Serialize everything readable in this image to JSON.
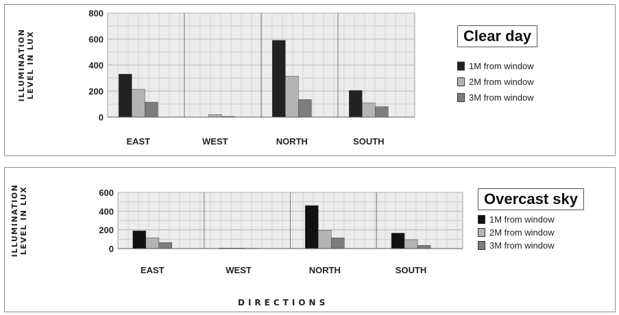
{
  "chart_data": [
    {
      "type": "bar",
      "title": "Clear day",
      "ylabel": "ILLUMINATION LEVEL IN LUX",
      "xlabel": "",
      "ylim": [
        0,
        800
      ],
      "yticks": [
        0,
        200,
        400,
        600,
        800
      ],
      "categories": [
        "EAST",
        "WEST",
        "NORTH",
        "SOUTH"
      ],
      "series": [
        {
          "name": "1M from window",
          "values": [
            330,
            0,
            590,
            205
          ],
          "color": "#222222"
        },
        {
          "name": "2M from window",
          "values": [
            215,
            20,
            315,
            110
          ],
          "color": "#b4b4b4"
        },
        {
          "name": "3M from window",
          "values": [
            115,
            5,
            135,
            80
          ],
          "color": "#7d7d7d"
        }
      ],
      "grid": true,
      "legend": "right"
    },
    {
      "type": "bar",
      "title": "Overcast sky",
      "ylabel": "ILLUMINATION LEVEL IN LUX",
      "xlabel": "DIRECTIONS",
      "ylim": [
        0,
        600
      ],
      "yticks": [
        0,
        200,
        400,
        600
      ],
      "categories": [
        "EAST",
        "WEST",
        "NORTH",
        "SOUTH"
      ],
      "series": [
        {
          "name": "1M from window",
          "values": [
            190,
            5,
            460,
            165
          ],
          "color": "#111111"
        },
        {
          "name": "2M from window",
          "values": [
            115,
            5,
            195,
            95
          ],
          "color": "#b4b4b4"
        },
        {
          "name": "3M from window",
          "values": [
            65,
            3,
            115,
            35
          ],
          "color": "#7d7d7d"
        }
      ],
      "grid": true,
      "legend": "right"
    }
  ]
}
